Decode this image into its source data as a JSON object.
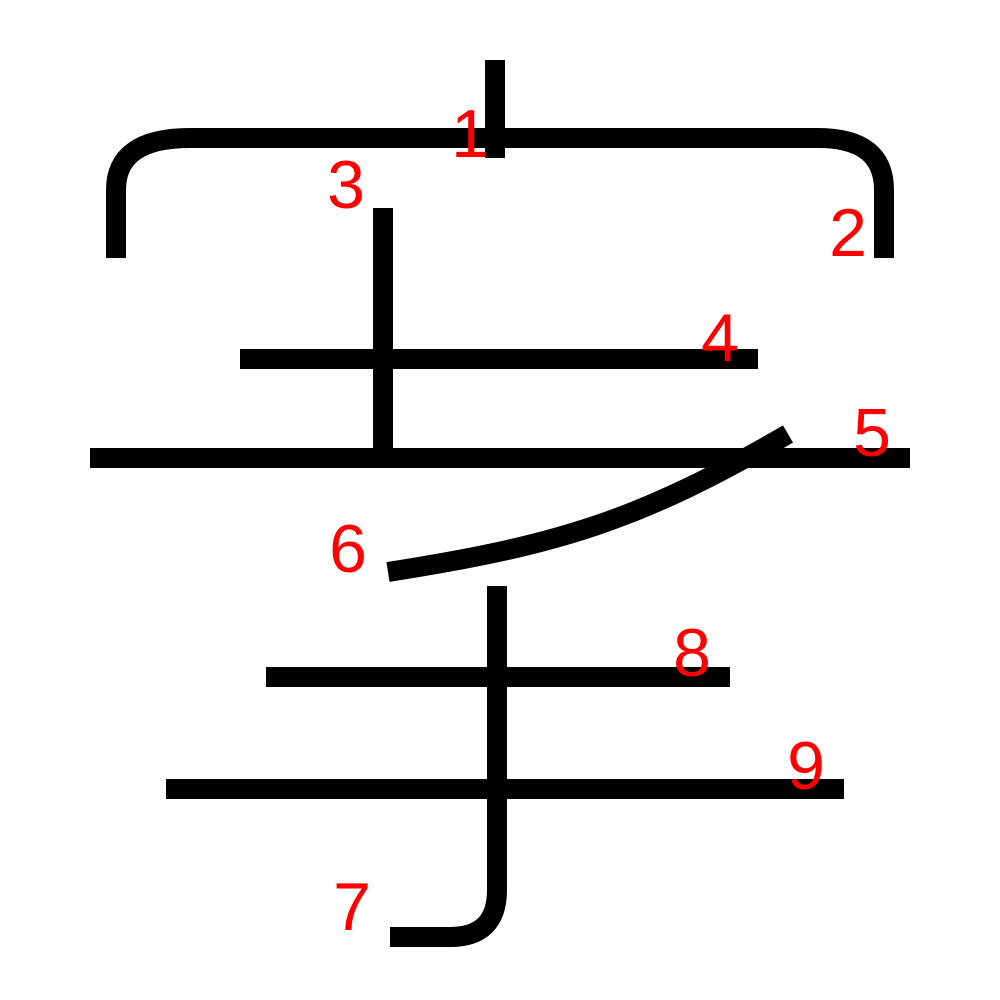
{
  "character": {
    "stroke_color": "#000000",
    "number_color": "#ff0000",
    "strokes": [
      {
        "order": "1"
      },
      {
        "order": "2"
      },
      {
        "order": "3"
      },
      {
        "order": "4"
      },
      {
        "order": "5"
      },
      {
        "order": "6"
      },
      {
        "order": "7"
      },
      {
        "order": "8"
      },
      {
        "order": "9"
      }
    ]
  }
}
